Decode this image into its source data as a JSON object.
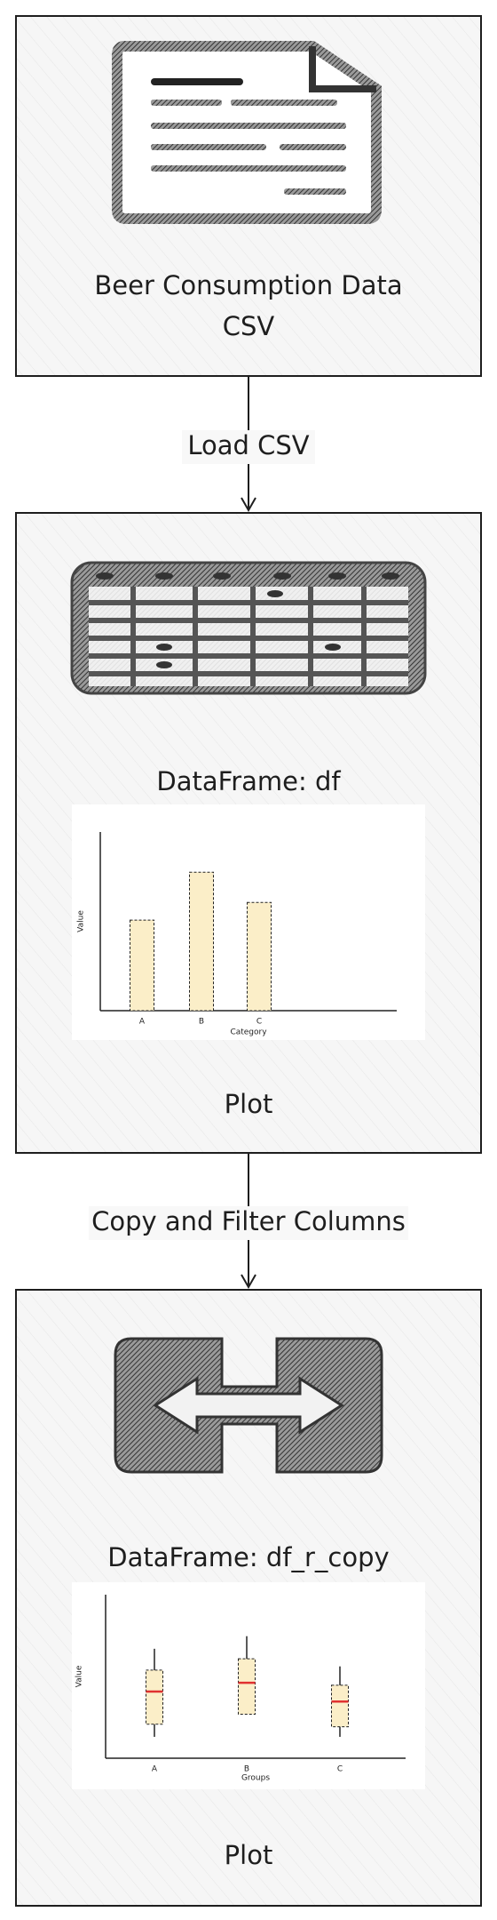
{
  "nodes": [
    {
      "label": [
        "Beer Consumption Data",
        "CSV"
      ]
    },
    {
      "label": "DataFrame: df",
      "caption": "Plot",
      "chart_data": {
        "type": "bar",
        "categories": [
          "A",
          "B",
          "C"
        ],
        "values": [
          72,
          110,
          86
        ],
        "ylim": [
          0,
          142
        ],
        "xlabel": "Category",
        "ylabel": "Value",
        "color": "#fbeec8"
      }
    },
    {
      "label": "DataFrame: df_r_copy",
      "caption": "Plot",
      "chart_data": {
        "type": "box",
        "categories": [
          "A",
          "B",
          "C"
        ],
        "ylim": [
          0,
          130
        ],
        "xlabel": "Groups",
        "ylabel": "Value",
        "color": "#fbeec8",
        "median_color": "#e03131",
        "series": [
          {
            "min": [
              17,
              35,
              17
            ],
            "q1": [
              27,
              35,
              25
            ],
            "median": [
              53,
              60,
              45
            ],
            "q3": [
              70,
              79,
              58
            ],
            "max": [
              87,
              97,
              73
            ]
          }
        ]
      }
    }
  ],
  "edges": [
    {
      "label": "Load CSV"
    },
    {
      "label": "Copy and Filter Columns"
    }
  ]
}
